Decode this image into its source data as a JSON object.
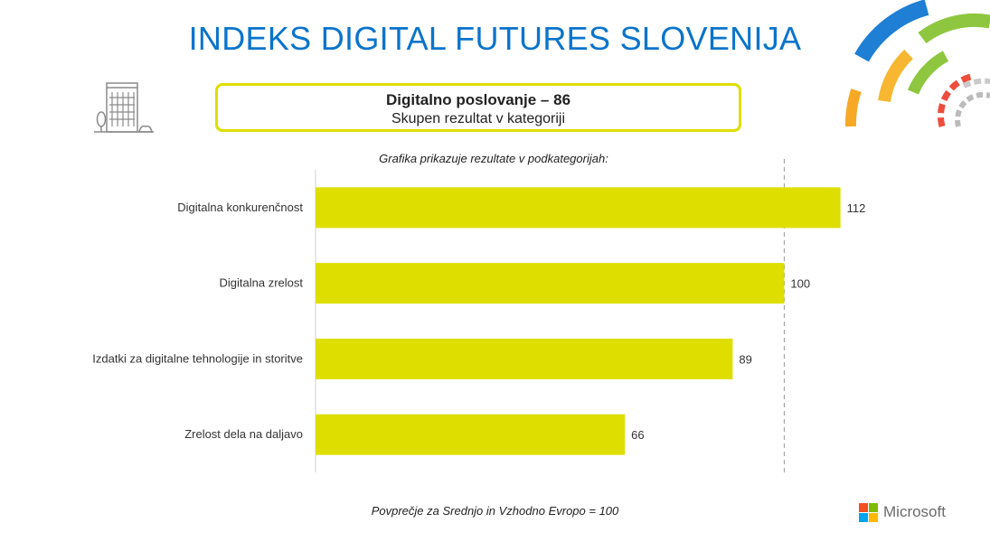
{
  "title": "INDEKS DIGITAL FUTURES SLOVENIJA",
  "box": {
    "title": "Digitalno poslovanje – 86",
    "subtitle": "Skupen rezultat v kategoriji"
  },
  "caption_top": "Grafika prikazuje rezultate v podkategorijah:",
  "caption_bottom": "Povprečje za Srednjo in Vzhodno Evropo = 100",
  "brand": "Microsoft",
  "colors": {
    "title": "#0a74cc",
    "bar": "#dede00",
    "reference_line": "#999999"
  },
  "icons": [
    "building-icon",
    "decorative-arcs",
    "microsoft-logo"
  ],
  "chart_data": {
    "type": "bar",
    "orientation": "horizontal",
    "categories": [
      "Digitalna konkurenčnost",
      "Digitalna zrelost",
      "Izdatki za digitalne tehnologije in storitve",
      "Zrelost dela na daljavo"
    ],
    "values": [
      112,
      100,
      89,
      66
    ],
    "xlim": [
      0,
      125
    ],
    "reference_line": 100,
    "grid": false
  }
}
